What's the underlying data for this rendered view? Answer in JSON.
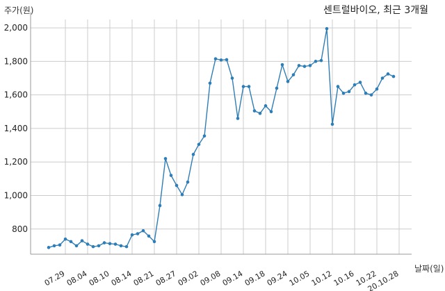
{
  "chart_data": {
    "type": "line",
    "title": "센트럴바이오, 최근 3개월",
    "ylabel": "주가(원)",
    "xlabel": "날짜(일)",
    "ylim": [
      650,
      2050
    ],
    "yticks": [
      800,
      1000,
      1200,
      1400,
      1600,
      1800,
      2000
    ],
    "ytick_labels": [
      "800",
      "1,000",
      "1,200",
      "1,400",
      "1,600",
      "1,800",
      "2,000"
    ],
    "xtick_labels": [
      "07.29",
      "08.04",
      "08.10",
      "08.14",
      "08.21",
      "08.27",
      "09.02",
      "09.08",
      "09.14",
      "09.18",
      "09.24",
      "10.05",
      "10.12",
      "10.16",
      "10.22",
      "20.10.28"
    ],
    "xtick_index": [
      3,
      7,
      11,
      15,
      19,
      23,
      27,
      31,
      35,
      39,
      43,
      47,
      51,
      55,
      59,
      63
    ],
    "grid": true,
    "line_color": "#2e7db5",
    "series": [
      {
        "values": [
          690,
          700,
          705,
          740,
          725,
          700,
          730,
          710,
          695,
          700,
          718,
          713,
          710,
          700,
          695,
          765,
          772,
          790,
          758,
          725,
          940,
          1220,
          1120,
          1060,
          1005,
          1080,
          1245,
          1305,
          1355,
          1670,
          1815,
          1808,
          1810,
          1700,
          1460,
          1650,
          1650,
          1505,
          1490,
          1535,
          1500,
          1640,
          1780,
          1680,
          1720,
          1775,
          1770,
          1775,
          1800,
          1805,
          1995,
          1425,
          1650,
          1610,
          1620,
          1660,
          1675,
          1610,
          1600,
          1635,
          1700,
          1725,
          1710
        ]
      }
    ]
  }
}
